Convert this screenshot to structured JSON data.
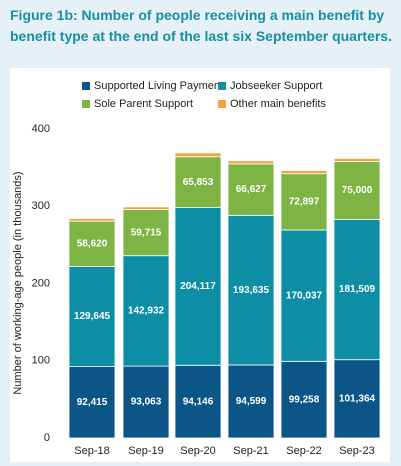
{
  "chart_data": {
    "type": "stacked_bar",
    "title": [
      "Figure 1b: Number of people receiving a main benefit by",
      "benefit type at the end of the last six September quarters."
    ],
    "y_axis_label": "Number of working-age people (in thousands)",
    "categories": [
      "Sep-18",
      "Sep-19",
      "Sep-20",
      "Sep-21",
      "Sep-22",
      "Sep-23"
    ],
    "series": [
      {
        "name": "Supported Living Payment",
        "color": "#0b5687",
        "values": [
          92.415,
          93.063,
          94.146,
          94.599,
          99.258,
          101.364
        ],
        "value_labels": [
          "92,415",
          "93,063",
          "94,146",
          "94,599",
          "99,258",
          "101,364"
        ]
      },
      {
        "name": "Jobseeker Support",
        "color": "#0e8ea4",
        "values": [
          129.645,
          142.932,
          204.117,
          193.635,
          170.037,
          181.509
        ],
        "value_labels": [
          "129,645",
          "142,932",
          "204,117",
          "193,635",
          "170,037",
          "181,509"
        ]
      },
      {
        "name": "Sole Parent Support",
        "color": "#7db443",
        "values": [
          58.62,
          59.715,
          65.853,
          66.627,
          72.897,
          75.0
        ],
        "value_labels": [
          "58,620",
          "59,715",
          "65,853",
          "66,627",
          "72,897",
          "75,000"
        ]
      },
      {
        "name": "Other main benefits",
        "color": "#f2a444",
        "values": [
          3.5,
          3.5,
          5,
          4,
          4,
          4
        ]
      }
    ],
    "ylim": [
      0,
      400
    ],
    "yticks": [
      0,
      100,
      200,
      300,
      400
    ]
  }
}
